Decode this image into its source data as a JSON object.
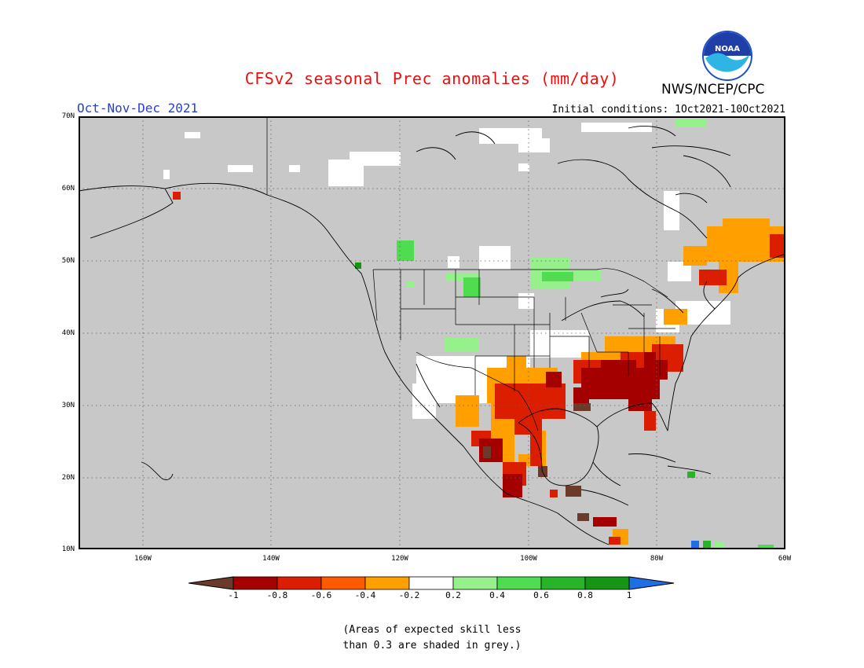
{
  "title": "CFSv2 seasonal Prec anomalies (mm/day)",
  "period": "Oct-Nov-Dec 2021",
  "initial_conditions": "Initial conditions: 1Oct2021-10Oct2021",
  "agency": "NWS/NCEP/CPC",
  "logo_text": "NOAA",
  "map": {
    "lon_range": [
      -170,
      -60
    ],
    "lat_range": [
      10,
      70
    ],
    "lat_labels": [
      "70N",
      "60N",
      "50N",
      "40N",
      "30N",
      "20N",
      "10N"
    ],
    "lon_labels": [
      "160W",
      "140W",
      "120W",
      "100W",
      "80W",
      "60W"
    ],
    "grid_lines": "dotted",
    "background_color": "#c8c8c8"
  },
  "colorbar": {
    "ticks": [
      "-1",
      "-0.8",
      "-0.6",
      "-0.4",
      "-0.2",
      "0.2",
      "0.4",
      "0.6",
      "0.8",
      "1"
    ],
    "colors": [
      "#6b3a2a",
      "#a50000",
      "#dc1e00",
      "#ff5a00",
      "#ff9f00",
      "#ffffff",
      "#96f08c",
      "#50dc50",
      "#28b428",
      "#149614",
      "#1e6ee6"
    ]
  },
  "note_line1": "(Areas of expected skill less",
  "note_line2": "than 0.3 are shaded in grey.)"
}
